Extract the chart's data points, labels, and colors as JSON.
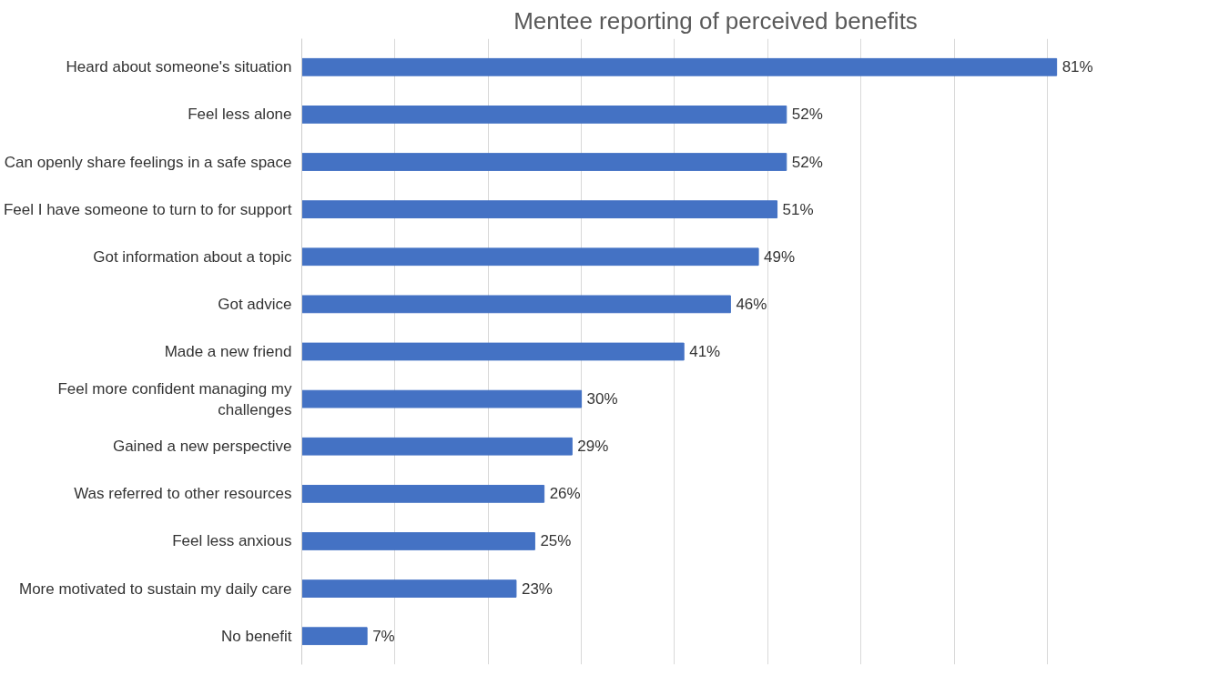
{
  "chart_data": {
    "type": "bar",
    "orientation": "horizontal",
    "title": "Mentee reporting of perceived benefits",
    "categories": [
      "Heard about someone's situation",
      "Feel less alone",
      "Can openly share feelings in a safe space",
      "Feel I have someone to turn to for support",
      "Got information about a topic",
      "Got advice",
      "Made a new friend",
      "Feel more confident managing my\nchallenges",
      "Gained a new perspective",
      "Was referred to other resources",
      "Feel less anxious",
      "More motivated to sustain my daily care",
      "No benefit"
    ],
    "values": [
      81,
      52,
      52,
      51,
      49,
      46,
      41,
      30,
      29,
      26,
      25,
      23,
      7
    ],
    "value_labels": [
      "81%",
      "52%",
      "52%",
      "51%",
      "49%",
      "46%",
      "41%",
      "30%",
      "29%",
      "26%",
      "25%",
      "23%",
      "7%"
    ],
    "color": "#4472c4",
    "xticks": [
      {
        "value": 0,
        "label": null
      },
      {
        "value": 10,
        "label": null
      },
      {
        "value": 20,
        "label": null
      },
      {
        "value": 30,
        "label": null
      },
      {
        "value": 40,
        "label": null
      },
      {
        "value": 50,
        "label": null
      },
      {
        "value": 60,
        "label": null
      },
      {
        "value": 70,
        "label": null
      },
      {
        "value": 80,
        "label": null
      }
    ],
    "tick_labels": "y",
    "grid": "x",
    "legend": false
  }
}
